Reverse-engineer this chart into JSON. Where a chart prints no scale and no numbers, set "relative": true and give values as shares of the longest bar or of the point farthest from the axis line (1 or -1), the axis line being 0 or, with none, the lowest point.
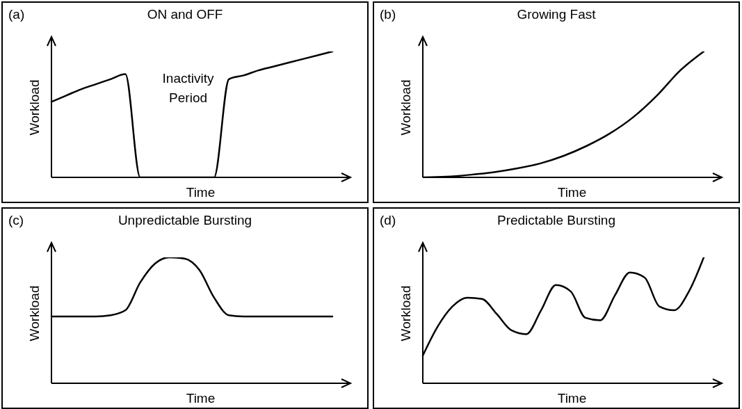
{
  "chart_data": [
    {
      "type": "line",
      "relative": true,
      "title": "ON and OFF",
      "xlabel": "Time",
      "ylabel": "Workload",
      "annotations": [
        "(a)",
        "Inactivity Period"
      ],
      "categories": [
        null,
        null,
        null,
        null,
        null,
        null,
        null,
        null,
        null,
        null,
        null,
        null,
        null,
        null,
        null,
        null,
        null,
        null,
        null,
        null
      ],
      "series": [
        {
          "color": "#000000",
          "values": [
            0.6,
            0.65,
            0.7,
            0.74,
            0.78,
            0.82,
            0,
            0,
            0,
            0,
            0,
            0,
            0.78,
            0.81,
            0.85,
            0.88,
            0.91,
            0.94,
            0.97,
            1
          ]
        }
      ]
    },
    {
      "type": "line",
      "relative": true,
      "title": "Growing Fast",
      "xlabel": "Time",
      "ylabel": "Workload",
      "annotations": [
        "(b)"
      ],
      "categories": [
        null,
        null,
        null,
        null,
        null,
        null,
        null,
        null,
        null,
        null,
        null,
        null,
        null
      ],
      "series": [
        {
          "color": "#000000",
          "values": [
            0,
            0.005,
            0.02,
            0.04,
            0.07,
            0.11,
            0.17,
            0.25,
            0.35,
            0.48,
            0.65,
            0.85,
            1
          ]
        }
      ]
    },
    {
      "type": "line",
      "relative": true,
      "title": "Unpredictable Bursting",
      "xlabel": "Time",
      "ylabel": "Workload",
      "annotations": [
        "(c)"
      ],
      "categories": [
        null,
        null,
        null,
        null,
        null,
        null,
        null,
        null,
        null,
        null,
        null,
        null,
        null,
        null,
        null,
        null,
        null,
        null,
        null,
        null
      ],
      "series": [
        {
          "color": "#000000",
          "values": [
            0.53,
            0.53,
            0.53,
            0.53,
            0.54,
            0.58,
            0.8,
            0.95,
            1,
            0.99,
            0.9,
            0.68,
            0.54,
            0.53,
            0.53,
            0.53,
            0.53,
            0.53,
            0.53,
            0.53
          ]
        }
      ]
    },
    {
      "type": "line",
      "relative": true,
      "title": "Predictable Bursting",
      "xlabel": "Time",
      "ylabel": "Workload",
      "annotations": [
        "(d)"
      ],
      "categories": [
        null,
        null,
        null,
        null,
        null,
        null,
        null,
        null,
        null,
        null,
        null,
        null,
        null,
        null,
        null,
        null,
        null,
        null,
        null,
        null
      ],
      "series": [
        {
          "color": "#000000",
          "values": [
            0.22,
            0.45,
            0.61,
            0.68,
            0.67,
            0.55,
            0.42,
            0.39,
            0.58,
            0.78,
            0.73,
            0.52,
            0.5,
            0.7,
            0.88,
            0.84,
            0.61,
            0.58,
            0.73,
            1
          ]
        }
      ]
    }
  ]
}
